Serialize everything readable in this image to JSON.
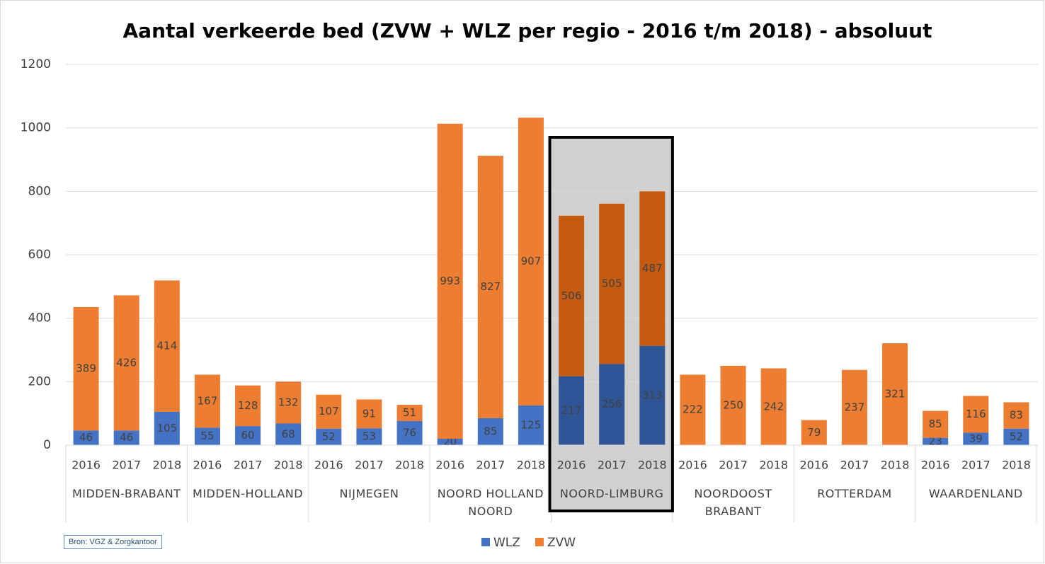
{
  "chart_data": {
    "type": "stacked_bar",
    "title": "Aantal verkeerde bed (ZVW + WLZ per regio - 2016 t/m 2018) - absoluut",
    "categories": [
      "2016",
      "2017",
      "2018",
      "2016",
      "2017",
      "2018",
      "2016",
      "2017",
      "2018",
      "2016",
      "2017",
      "2018",
      "2016",
      "2017",
      "2018",
      "2016",
      "2017",
      "2018",
      "2016",
      "2017",
      "2018",
      "2016",
      "2017",
      "2018"
    ],
    "groups": [
      "MIDDEN-BRABANT",
      "MIDDEN-HOLLAND",
      "NIJMEGEN",
      "NOORD HOLLAND\nNOORD",
      "NOORD-LIMBURG",
      "NOORDOOST\nBRABANT",
      "ROTTERDAM",
      "WAARDENLAND"
    ],
    "highlight": "NOORD-LIMBURG",
    "series": [
      {
        "name": "WLZ",
        "color": "#4472c4",
        "highlight_color": "#2f5597",
        "values": [
          46,
          46,
          105,
          55,
          60,
          68,
          52,
          53,
          76,
          20,
          85,
          125,
          217,
          256,
          313,
          null,
          null,
          null,
          null,
          null,
          null,
          23,
          39,
          52
        ]
      },
      {
        "name": "ZVW",
        "color": "#ed7d31",
        "highlight_color": "#c55a11",
        "values": [
          389,
          426,
          414,
          167,
          128,
          132,
          107,
          91,
          51,
          993,
          827,
          907,
          506,
          505,
          487,
          222,
          250,
          242,
          79,
          237,
          321,
          85,
          116,
          83
        ]
      }
    ],
    "ylim": [
      0,
      1200
    ],
    "yticks": [
      0,
      200,
      400,
      600,
      800,
      1000,
      1200
    ],
    "grid": true,
    "source": "Bron: VGZ & Zorgkantoor"
  }
}
